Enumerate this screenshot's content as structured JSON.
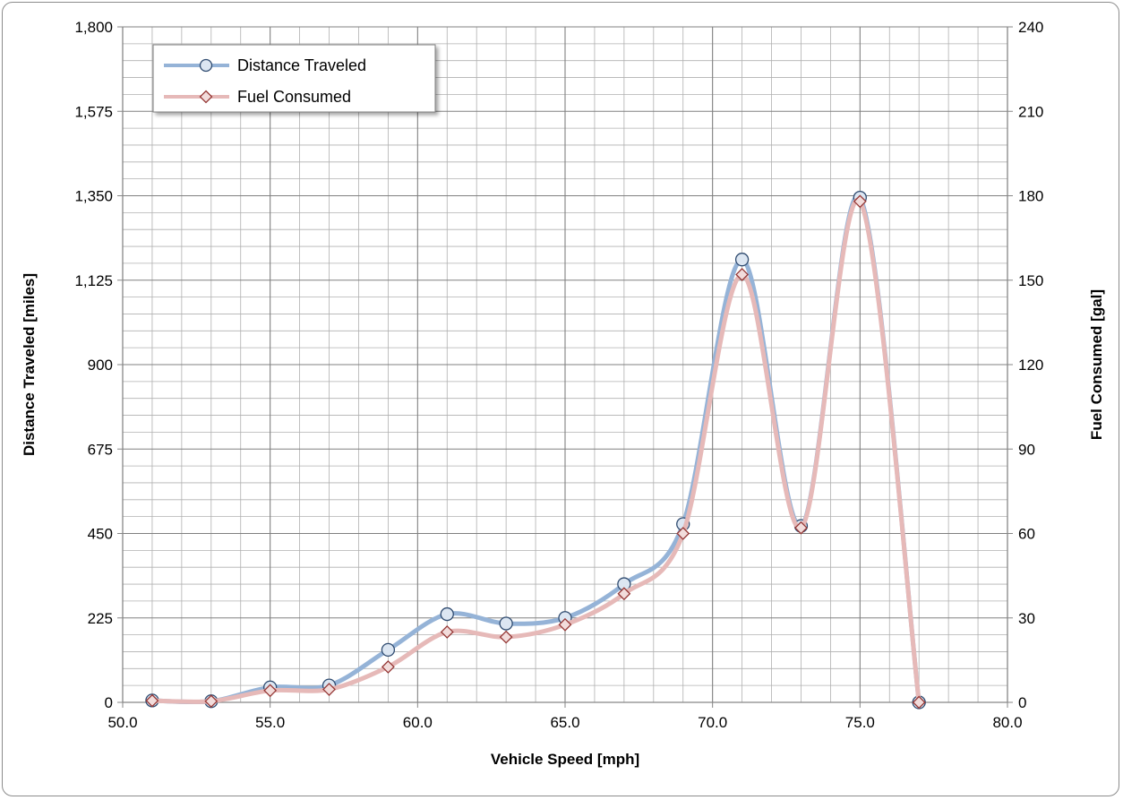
{
  "chart_data": {
    "type": "line",
    "title": "",
    "xlabel": "Vehicle Speed [mph]",
    "ylabel": "Distance Traveled [miles]",
    "y2label": "Fuel Consumed [gal]",
    "xlim": [
      50,
      80
    ],
    "ylim": [
      0,
      1800
    ],
    "y2lim": [
      0,
      240
    ],
    "x_ticks": [
      "50.0",
      "55.0",
      "60.0",
      "65.0",
      "70.0",
      "75.0",
      "80.0"
    ],
    "y_ticks": [
      "0",
      "225",
      "450",
      "675",
      "900",
      "1,125",
      "1,350",
      "1,575",
      "1,800"
    ],
    "y2_ticks": [
      "0",
      "30",
      "60",
      "90",
      "120",
      "150",
      "180",
      "210",
      "240"
    ],
    "grid": true,
    "legend_position": "top-left",
    "series": [
      {
        "name": "Distance Traveled",
        "axis": "left",
        "marker": "circle",
        "color": "#95b3d7",
        "marker_fill": "#dce6f2",
        "marker_stroke": "#2f4b70",
        "x": [
          51,
          53,
          55,
          57,
          59,
          61,
          63,
          65,
          67,
          69,
          71,
          73,
          75,
          77
        ],
        "y": [
          5,
          3,
          40,
          45,
          140,
          235,
          210,
          225,
          315,
          475,
          1180,
          470,
          1345,
          0
        ]
      },
      {
        "name": "Fuel Consumed",
        "axis": "right",
        "marker": "diamond",
        "color": "#e6b9b8",
        "marker_fill": "#f2dcdb",
        "marker_stroke": "#953735",
        "x": [
          51,
          53,
          55,
          57,
          59,
          61,
          63,
          65,
          67,
          69,
          71,
          73,
          75,
          77
        ],
        "y": [
          0.6,
          0.4,
          4.2,
          4.6,
          12.6,
          25.0,
          23.2,
          27.6,
          38.6,
          60.0,
          152.0,
          62.0,
          178.0,
          0
        ]
      }
    ]
  }
}
